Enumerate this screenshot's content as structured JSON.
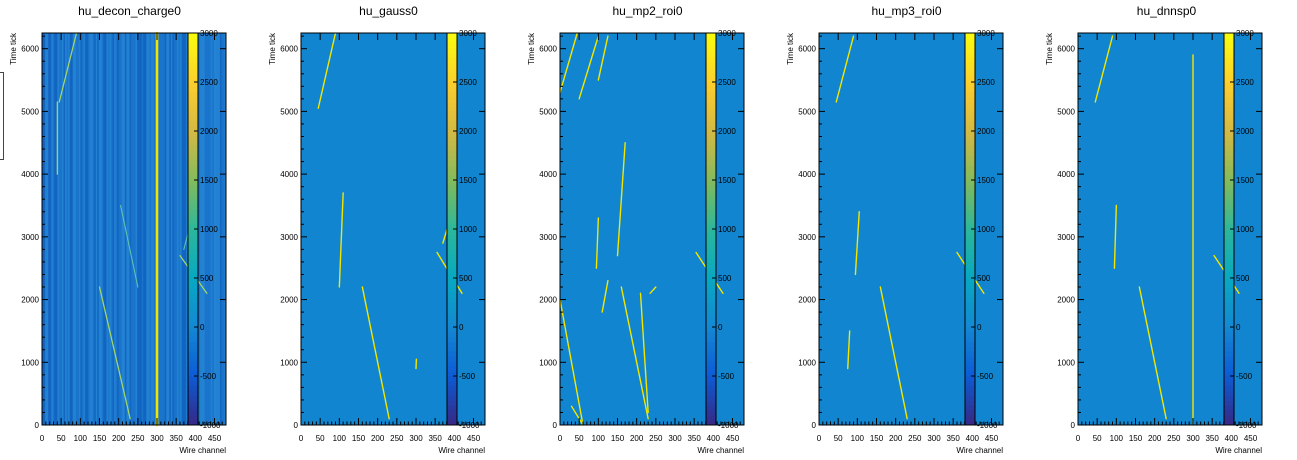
{
  "colors": {
    "background_plane": "#1185cf",
    "decon_base": "#1a70c8",
    "hit": "#f3e600",
    "palette": [
      "#352a87",
      "#0b5dd6",
      "#1389d3",
      "#07a8c2",
      "#2cb79a",
      "#83bb5d",
      "#d3b944",
      "#fcce2e",
      "#f9fb0e"
    ]
  },
  "chart_data": [
    {
      "type": "heatmap",
      "title": "hu_decon_charge0",
      "xlabel": "Wire channel",
      "ylabel": "Time tick",
      "xlim": [
        0,
        480
      ],
      "ylim": [
        0,
        6250
      ],
      "zlim": [
        -1000,
        3000
      ],
      "xticks": [
        "0",
        "50",
        "100",
        "150",
        "200",
        "250",
        "300",
        "350",
        "400",
        "450"
      ],
      "yticks": [
        "0",
        "1000",
        "2000",
        "3000",
        "4000",
        "5000",
        "6000"
      ],
      "zticks": [
        "-1000",
        "-500",
        "0",
        "500",
        "1000",
        "1500",
        "2000",
        "2500",
        "3000"
      ],
      "tracks": [
        {
          "x": [
            300,
            300
          ],
          "y": [
            0,
            6250
          ],
          "intensity": "high"
        },
        {
          "x": [
            45,
            90
          ],
          "y": [
            5150,
            6250
          ],
          "intensity": "medium"
        },
        {
          "x": [
            40,
            40
          ],
          "y": [
            4000,
            5150
          ],
          "intensity": "medium"
        },
        {
          "x": [
            150,
            230
          ],
          "y": [
            2200,
            100
          ],
          "intensity": "medium"
        },
        {
          "x": [
            360,
            430
          ],
          "y": [
            2700,
            2100
          ],
          "intensity": "medium"
        },
        {
          "x": [
            370,
            385
          ],
          "y": [
            2800,
            3150
          ],
          "intensity": "low"
        },
        {
          "x": [
            205,
            250
          ],
          "y": [
            3500,
            2200
          ],
          "intensity": "low"
        }
      ]
    },
    {
      "type": "heatmap",
      "title": "hu_gauss0",
      "xlabel": "Wire channel",
      "ylabel": "Time tick",
      "xlim": [
        0,
        480
      ],
      "ylim": [
        0,
        6250
      ],
      "zlim": [
        -1000,
        3000
      ],
      "xticks": [
        "0",
        "50",
        "100",
        "150",
        "200",
        "250",
        "300",
        "350",
        "400",
        "450"
      ],
      "yticks": [
        "0",
        "1000",
        "2000",
        "3000",
        "4000",
        "5000",
        "6000"
      ],
      "zticks": [
        "-1000",
        "-500",
        "0",
        "500",
        "1000",
        "1500",
        "2000",
        "2500",
        "3000"
      ],
      "tracks": [
        {
          "x": [
            45,
            90
          ],
          "y": [
            5050,
            6250
          ]
        },
        {
          "x": [
            160,
            230
          ],
          "y": [
            2200,
            100
          ]
        },
        {
          "x": [
            355,
            420
          ],
          "y": [
            2750,
            2100
          ]
        },
        {
          "x": [
            100,
            110
          ],
          "y": [
            2200,
            3700
          ]
        },
        {
          "x": [
            300,
            301
          ],
          "y": [
            900,
            1050
          ]
        },
        {
          "x": [
            370,
            385
          ],
          "y": [
            2900,
            3200
          ]
        }
      ]
    },
    {
      "type": "heatmap",
      "title": "hu_mp2_roi0",
      "xlabel": "Wire channel",
      "ylabel": "Time tick",
      "xlim": [
        0,
        480
      ],
      "ylim": [
        0,
        6250
      ],
      "zlim": [
        -1000,
        3000
      ],
      "xticks": [
        "0",
        "50",
        "100",
        "150",
        "200",
        "250",
        "300",
        "350",
        "400",
        "450"
      ],
      "yticks": [
        "0",
        "1000",
        "2000",
        "3000",
        "4000",
        "5000",
        "6000"
      ],
      "zticks": [
        "-1000",
        "-500",
        "0",
        "500",
        "1000",
        "1500",
        "2000",
        "2500",
        "3000"
      ],
      "tracks": [
        {
          "x": [
            0,
            45
          ],
          "y": [
            5300,
            6250
          ]
        },
        {
          "x": [
            50,
            100
          ],
          "y": [
            5200,
            6200
          ]
        },
        {
          "x": [
            160,
            230
          ],
          "y": [
            2200,
            100
          ]
        },
        {
          "x": [
            210,
            230
          ],
          "y": [
            2100,
            200
          ]
        },
        {
          "x": [
            355,
            425
          ],
          "y": [
            2750,
            2100
          ]
        },
        {
          "x": [
            0,
            60
          ],
          "y": [
            2000,
            0
          ]
        },
        {
          "x": [
            30,
            60
          ],
          "y": [
            300,
            0
          ]
        },
        {
          "x": [
            100,
            125
          ],
          "y": [
            5500,
            6200
          ]
        },
        {
          "x": [
            110,
            125
          ],
          "y": [
            1800,
            2300
          ]
        },
        {
          "x": [
            150,
            170
          ],
          "y": [
            2700,
            4500
          ]
        },
        {
          "x": [
            95,
            100
          ],
          "y": [
            2500,
            3300
          ]
        },
        {
          "x": [
            235,
            250
          ],
          "y": [
            2100,
            2200
          ]
        }
      ]
    },
    {
      "type": "heatmap",
      "title": "hu_mp3_roi0",
      "xlabel": "Wire channel",
      "ylabel": "Time tick",
      "xlim": [
        0,
        480
      ],
      "ylim": [
        0,
        6250
      ],
      "zlim": [
        -1000,
        3000
      ],
      "xticks": [
        "0",
        "50",
        "100",
        "150",
        "200",
        "250",
        "300",
        "350",
        "400",
        "450"
      ],
      "yticks": [
        "0",
        "1000",
        "2000",
        "3000",
        "4000",
        "5000",
        "6000"
      ],
      "zticks": [
        "-1000",
        "-500",
        "0",
        "500",
        "1000",
        "1500",
        "2000",
        "2500",
        "3000"
      ],
      "tracks": [
        {
          "x": [
            45,
            90
          ],
          "y": [
            5150,
            6200
          ]
        },
        {
          "x": [
            160,
            230
          ],
          "y": [
            2200,
            100
          ]
        },
        {
          "x": [
            360,
            430
          ],
          "y": [
            2750,
            2100
          ]
        },
        {
          "x": [
            95,
            105
          ],
          "y": [
            2400,
            3400
          ]
        },
        {
          "x": [
            75,
            80
          ],
          "y": [
            900,
            1500
          ]
        }
      ]
    },
    {
      "type": "heatmap",
      "title": "hu_dnnsp0",
      "xlabel": "Wire channel",
      "ylabel": "Time tick",
      "xlim": [
        0,
        480
      ],
      "ylim": [
        0,
        6250
      ],
      "zlim": [
        -1000,
        3000
      ],
      "xticks": [
        "0",
        "50",
        "100",
        "150",
        "200",
        "250",
        "300",
        "350",
        "400",
        "450"
      ],
      "yticks": [
        "0",
        "1000",
        "2000",
        "3000",
        "4000",
        "5000",
        "6000"
      ],
      "zticks": [
        "-1000",
        "-500",
        "0",
        "500",
        "1000",
        "1500",
        "2000",
        "2500",
        "3000"
      ],
      "tracks": [
        {
          "x": [
            300,
            300
          ],
          "y": [
            0,
            5900
          ]
        },
        {
          "x": [
            45,
            90
          ],
          "y": [
            5150,
            6200
          ]
        },
        {
          "x": [
            160,
            230
          ],
          "y": [
            2200,
            100
          ]
        },
        {
          "x": [
            355,
            420
          ],
          "y": [
            2700,
            2100
          ]
        },
        {
          "x": [
            95,
            100
          ],
          "y": [
            2500,
            3500
          ]
        }
      ]
    }
  ]
}
